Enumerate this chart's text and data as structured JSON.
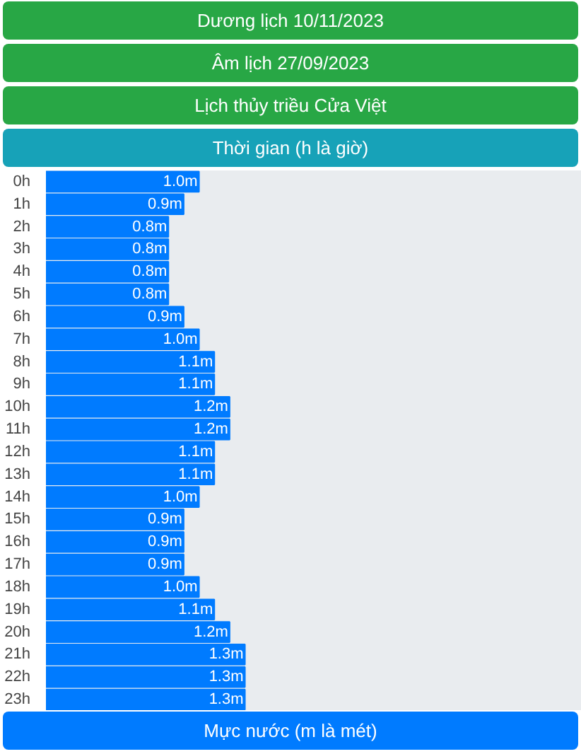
{
  "chart_data": {
    "type": "bar",
    "orientation": "horizontal",
    "title": "Dương lịch 10/11/2023",
    "subtitle": "Âm lịch 27/09/2023",
    "annotations": [
      "Lịch thủy triều Cửa Việt"
    ],
    "ylabel": "Thời gian (h là giờ)",
    "xlabel": "Mực nước (m là mét)",
    "categories": [
      "0h",
      "1h",
      "2h",
      "3h",
      "4h",
      "5h",
      "6h",
      "7h",
      "8h",
      "9h",
      "10h",
      "11h",
      "12h",
      "13h",
      "14h",
      "15h",
      "16h",
      "17h",
      "18h",
      "19h",
      "20h",
      "21h",
      "22h",
      "23h"
    ],
    "values": [
      1.0,
      0.9,
      0.8,
      0.8,
      0.8,
      0.8,
      0.9,
      1.0,
      1.1,
      1.1,
      1.2,
      1.2,
      1.1,
      1.1,
      1.0,
      0.9,
      0.9,
      0.9,
      1.0,
      1.1,
      1.2,
      1.3,
      1.3,
      1.3
    ],
    "value_labels": [
      "1.0m",
      "0.9m",
      "0.8m",
      "0.8m",
      "0.8m",
      "0.8m",
      "0.9m",
      "1.0m",
      "1.1m",
      "1.1m",
      "1.2m",
      "1.2m",
      "1.1m",
      "1.1m",
      "1.0m",
      "0.9m",
      "0.9m",
      "0.9m",
      "1.0m",
      "1.1m",
      "1.2m",
      "1.3m",
      "1.3m",
      "1.3m"
    ],
    "color": "#007bff",
    "xlim": [
      0,
      3.5
    ],
    "grid": false
  }
}
